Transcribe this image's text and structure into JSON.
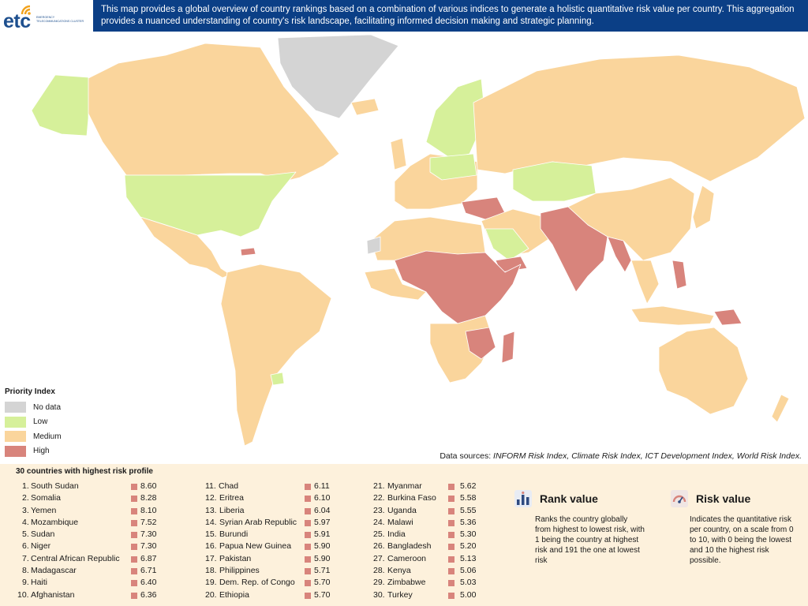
{
  "header": {
    "logo_text": "etc",
    "logo_subtitle": "EMERGENCY TELECOMMUNICATIONS CLUSTER",
    "description": "This map provides a global overview of country rankings based on a combination of various indices to generate a holistic quantitative risk value per country. This aggregation provides a nuanced understanding of country's risk landscape, facilitating informed decision making and strategic planning."
  },
  "colors": {
    "no_data": "#d4d4d4",
    "low": "#d6f09a",
    "medium": "#fad59c",
    "high": "#d8847c",
    "header_band": "#0b3f86",
    "panel": "#fdf1dc"
  },
  "legend": {
    "title": "Priority Index",
    "items": [
      {
        "label": "No data",
        "color": "#d4d4d4"
      },
      {
        "label": "Low",
        "color": "#d6f09a"
      },
      {
        "label": "Medium",
        "color": "#fad59c"
      },
      {
        "label": "High",
        "color": "#d8847c"
      }
    ]
  },
  "sources": {
    "prefix": "Data sources: ",
    "list": "INFORM Risk Index, Climate Risk Index, ICT Development Index, World Risk Index."
  },
  "ranking": {
    "title": "30 countries with highest risk profile",
    "columns": [
      [
        {
          "rank": "1.",
          "name": "South Sudan",
          "score": "8.60"
        },
        {
          "rank": "2.",
          "name": "Somalia",
          "score": "8.28"
        },
        {
          "rank": "3.",
          "name": "Yemen",
          "score": "8.10"
        },
        {
          "rank": "4.",
          "name": "Mozambique",
          "score": "7.52"
        },
        {
          "rank": "5.",
          "name": "Sudan",
          "score": "7.30"
        },
        {
          "rank": "6.",
          "name": "Niger",
          "score": "7.30"
        },
        {
          "rank": "7.",
          "name": "Central African Republic",
          "score": "6.87"
        },
        {
          "rank": "8.",
          "name": "Madagascar",
          "score": "6.71"
        },
        {
          "rank": "9.",
          "name": "Haiti",
          "score": "6.40"
        },
        {
          "rank": "10.",
          "name": "Afghanistan",
          "score": "6.36"
        }
      ],
      [
        {
          "rank": "11.",
          "name": "Chad",
          "score": "6.11"
        },
        {
          "rank": "12.",
          "name": "Eritrea",
          "score": "6.10"
        },
        {
          "rank": "13.",
          "name": "Liberia",
          "score": "6.04"
        },
        {
          "rank": "14.",
          "name": "Syrian Arab Republic",
          "score": "5.97"
        },
        {
          "rank": "15.",
          "name": "Burundi",
          "score": "5.91"
        },
        {
          "rank": "16.",
          "name": "Papua New Guinea",
          "score": "5.90"
        },
        {
          "rank": "17.",
          "name": "Pakistan",
          "score": "5.90"
        },
        {
          "rank": "18.",
          "name": "Philippines",
          "score": "5.71"
        },
        {
          "rank": "19.",
          "name": "Dem. Rep. of Congo",
          "score": "5.70"
        },
        {
          "rank": "20.",
          "name": "Ethiopia",
          "score": "5.70"
        }
      ],
      [
        {
          "rank": "21.",
          "name": "Myanmar",
          "score": "5.62"
        },
        {
          "rank": "22.",
          "name": "Burkina Faso",
          "score": "5.58"
        },
        {
          "rank": "23.",
          "name": "Uganda",
          "score": "5.55"
        },
        {
          "rank": "24.",
          "name": "Malawi",
          "score": "5.36"
        },
        {
          "rank": "25.",
          "name": "India",
          "score": "5.30"
        },
        {
          "rank": "26.",
          "name": "Bangladesh",
          "score": "5.20"
        },
        {
          "rank": "27.",
          "name": "Cameroon",
          "score": "5.13"
        },
        {
          "rank": "28.",
          "name": "Kenya",
          "score": "5.06"
        },
        {
          "rank": "29.",
          "name": "Zimbabwe",
          "score": "5.03"
        },
        {
          "rank": "30.",
          "name": "Turkey",
          "score": "5.00"
        }
      ]
    ]
  },
  "info": {
    "rank": {
      "icon": "bar-chart-icon",
      "title": "Rank value",
      "text": "Ranks the country globally from highest to lowest risk, with 1 being the country at highest risk and 191 the one at lowest risk"
    },
    "risk": {
      "icon": "gauge-icon",
      "title": "Risk value",
      "text": "Indicates the quantitative risk per country, on a scale from 0 to 10, with 0 being the lowest and 10 the highest risk possible."
    }
  }
}
